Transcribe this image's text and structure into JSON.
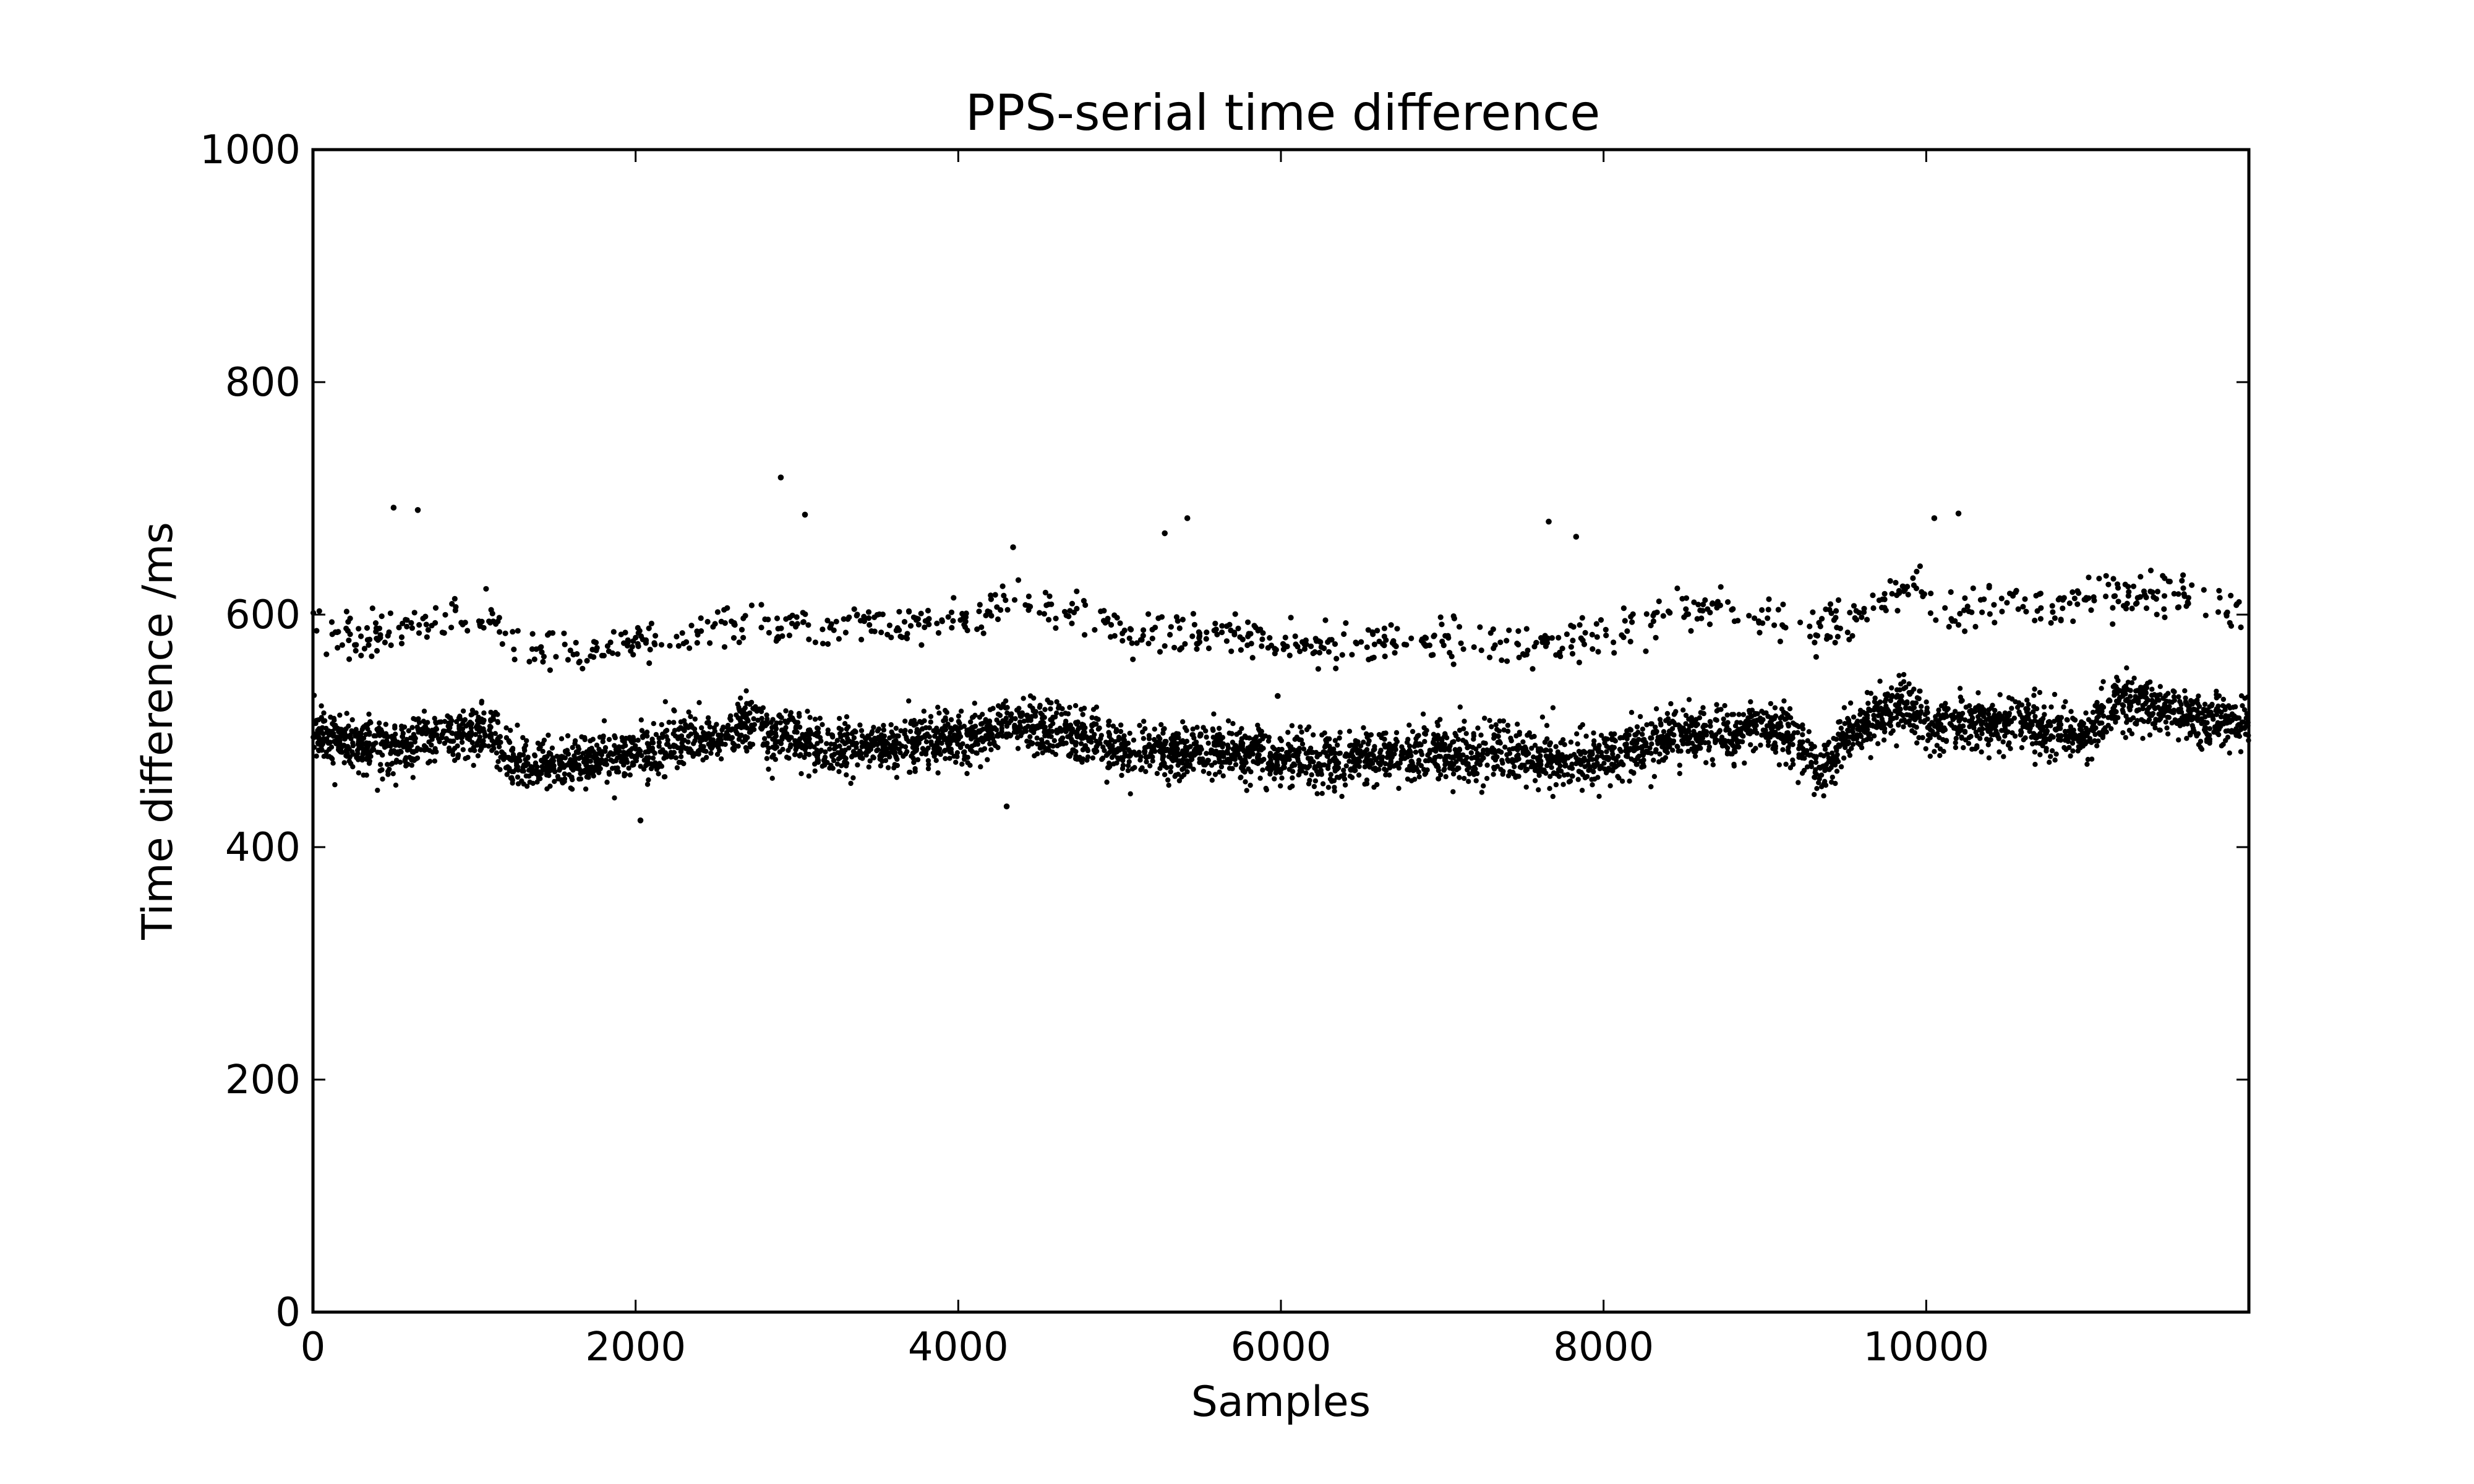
{
  "chart_data": {
    "type": "scatter",
    "title": "PPS-serial time difference",
    "xlabel": "Samples",
    "ylabel": "Time difference /ms",
    "xlim": [
      0,
      12000
    ],
    "ylim": [
      0,
      1000
    ],
    "x_ticks": [
      0,
      2000,
      4000,
      6000,
      8000,
      10000
    ],
    "y_ticks": [
      0,
      200,
      400,
      600,
      800,
      1000
    ],
    "grid": false,
    "marker_color": "#000000",
    "series": [
      {
        "description_level": "main band",
        "points": 5200,
        "x_range": [
          0,
          12000
        ],
        "trend": [
          [
            0,
            500
          ],
          [
            200,
            490
          ],
          [
            500,
            485
          ],
          [
            800,
            495
          ],
          [
            1100,
            500
          ],
          [
            1250,
            470
          ],
          [
            1500,
            470
          ],
          [
            1700,
            475
          ],
          [
            2000,
            480
          ],
          [
            2200,
            490
          ],
          [
            2500,
            495
          ],
          [
            2700,
            505
          ],
          [
            2900,
            495
          ],
          [
            3200,
            485
          ],
          [
            3500,
            485
          ],
          [
            3800,
            490
          ],
          [
            4100,
            495
          ],
          [
            4350,
            505
          ],
          [
            4600,
            500
          ],
          [
            4800,
            495
          ],
          [
            5000,
            480
          ],
          [
            5300,
            480
          ],
          [
            5600,
            485
          ],
          [
            5800,
            480
          ],
          [
            6100,
            475
          ],
          [
            6500,
            475
          ],
          [
            7000,
            480
          ],
          [
            7500,
            480
          ],
          [
            7800,
            475
          ],
          [
            8100,
            480
          ],
          [
            8300,
            490
          ],
          [
            8600,
            500
          ],
          [
            8800,
            495
          ],
          [
            9000,
            505
          ],
          [
            9200,
            490
          ],
          [
            9350,
            465
          ],
          [
            9500,
            495
          ],
          [
            9700,
            510
          ],
          [
            9850,
            525
          ],
          [
            10000,
            505
          ],
          [
            10300,
            505
          ],
          [
            10600,
            510
          ],
          [
            10800,
            500
          ],
          [
            11000,
            495
          ],
          [
            11200,
            525
          ],
          [
            11500,
            520
          ],
          [
            11700,
            510
          ],
          [
            12000,
            505
          ]
        ],
        "spread": 25
      },
      {
        "description_level": "upper band",
        "points": 900,
        "x_range": [
          0,
          12000
        ],
        "trend": [
          [
            0,
            595
          ],
          [
            300,
            575
          ],
          [
            700,
            595
          ],
          [
            1100,
            600
          ],
          [
            1300,
            570
          ],
          [
            1700,
            570
          ],
          [
            2000,
            575
          ],
          [
            2500,
            590
          ],
          [
            3000,
            590
          ],
          [
            3500,
            590
          ],
          [
            4000,
            595
          ],
          [
            4400,
            605
          ],
          [
            4800,
            600
          ],
          [
            5100,
            580
          ],
          [
            5500,
            585
          ],
          [
            6000,
            575
          ],
          [
            6500,
            575
          ],
          [
            7000,
            580
          ],
          [
            7500,
            575
          ],
          [
            8000,
            580
          ],
          [
            8300,
            595
          ],
          [
            8600,
            605
          ],
          [
            9000,
            600
          ],
          [
            9300,
            585
          ],
          [
            9600,
            605
          ],
          [
            9900,
            625
          ],
          [
            10200,
            600
          ],
          [
            10500,
            610
          ],
          [
            10800,
            605
          ],
          [
            11200,
            620
          ],
          [
            11600,
            610
          ],
          [
            12000,
            605
          ]
        ],
        "spread": 20
      }
    ],
    "outliers": [
      [
        500,
        692
      ],
      [
        650,
        690
      ],
      [
        2900,
        718
      ],
      [
        3050,
        686
      ],
      [
        4340,
        658
      ],
      [
        5280,
        670
      ],
      [
        5420,
        683
      ],
      [
        7660,
        680
      ],
      [
        7830,
        667
      ],
      [
        10050,
        683
      ],
      [
        10200,
        687
      ],
      [
        2030,
        423
      ],
      [
        4300,
        435
      ],
      [
        5980,
        530
      ]
    ]
  }
}
